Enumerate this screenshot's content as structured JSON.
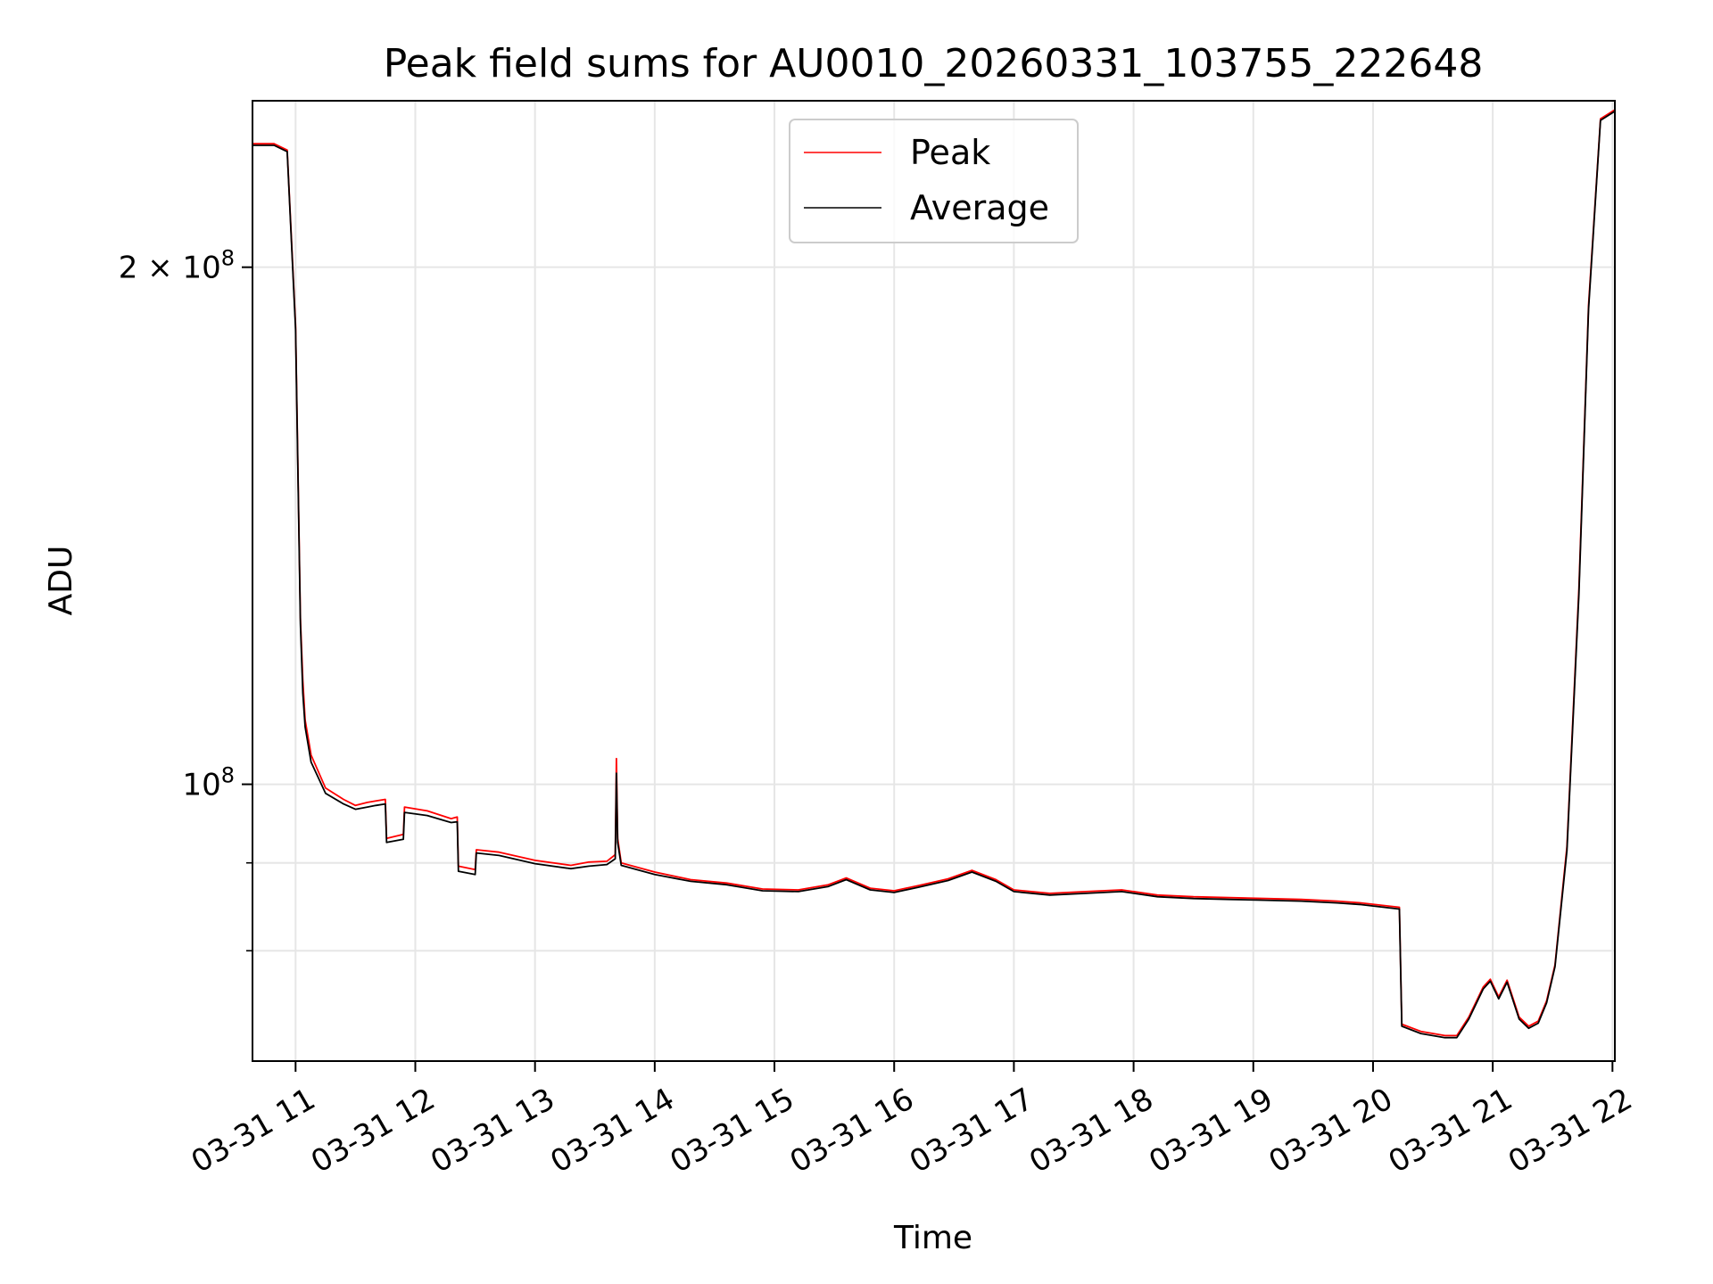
{
  "chart_data": {
    "type": "line",
    "title": "Peak field sums for AU0010_20260331_103755_222648",
    "xlabel": "Time",
    "ylabel": "ADU",
    "yscale": "log",
    "xlim": [
      10.64,
      22.02
    ],
    "ylim": [
      69000000,
      250000000
    ],
    "grid": true,
    "legend_position": "upper-center",
    "x_ticks": [
      {
        "value": 11,
        "label": "03-31 11"
      },
      {
        "value": 12,
        "label": "03-31 12"
      },
      {
        "value": 13,
        "label": "03-31 13"
      },
      {
        "value": 14,
        "label": "03-31 14"
      },
      {
        "value": 15,
        "label": "03-31 15"
      },
      {
        "value": 16,
        "label": "03-31 16"
      },
      {
        "value": 17,
        "label": "03-31 17"
      },
      {
        "value": 18,
        "label": "03-31 18"
      },
      {
        "value": 19,
        "label": "03-31 19"
      },
      {
        "value": 20,
        "label": "03-31 20"
      },
      {
        "value": 21,
        "label": "03-31 21"
      },
      {
        "value": 22,
        "label": "03-31 22"
      }
    ],
    "y_major_ticks": [
      {
        "value": 100000000,
        "label_base": "10",
        "label_exp": "8"
      },
      {
        "value": 200000000,
        "label_base": "2 × 10",
        "label_exp": "8"
      }
    ],
    "y_minor_ticks": [
      80000000,
      90000000
    ],
    "series": [
      {
        "name": "Peak",
        "color": "#ff0000",
        "x": [
          10.64,
          10.82,
          10.93,
          11.0,
          11.04,
          11.06,
          11.08,
          11.13,
          11.25,
          11.4,
          11.5,
          11.6,
          11.67,
          11.75,
          11.76,
          11.9,
          11.91,
          12.1,
          12.3,
          12.35,
          12.36,
          12.5,
          12.51,
          12.7,
          13.0,
          13.3,
          13.45,
          13.6,
          13.67,
          13.68,
          13.69,
          13.72,
          14.0,
          14.3,
          14.6,
          14.9,
          15.2,
          15.45,
          15.6,
          15.8,
          16.0,
          16.2,
          16.45,
          16.65,
          16.85,
          17.0,
          17.3,
          17.6,
          17.9,
          18.2,
          18.5,
          18.8,
          19.1,
          19.4,
          19.7,
          19.9,
          20.22,
          20.24,
          20.4,
          20.6,
          20.7,
          20.8,
          20.92,
          20.98,
          21.05,
          21.12,
          21.22,
          21.3,
          21.38,
          21.45,
          21.52,
          21.62,
          21.72,
          21.8,
          21.9,
          22.02
        ],
        "y": [
          236000000,
          236000000,
          234000000,
          185000000,
          125000000,
          115000000,
          109000000,
          104000000,
          99500000,
          98000000,
          97200000,
          97600000,
          97800000,
          98000000,
          93000000,
          93500000,
          97000000,
          96500000,
          95500000,
          95700000,
          89600000,
          89200000,
          91600000,
          91300000,
          90300000,
          89700000,
          90100000,
          90200000,
          91000000,
          103500000,
          93000000,
          90000000,
          88900000,
          88000000,
          87600000,
          86900000,
          86800000,
          87400000,
          88200000,
          87000000,
          86700000,
          87300000,
          88100000,
          89100000,
          88000000,
          86800000,
          86400000,
          86600000,
          86800000,
          86200000,
          86000000,
          85900000,
          85800000,
          85700000,
          85500000,
          85300000,
          84800000,
          72500000,
          71800000,
          71400000,
          71400000,
          73200000,
          76200000,
          77000000,
          75200000,
          76900000,
          73200000,
          72300000,
          72800000,
          74800000,
          78500000,
          92000000,
          130000000,
          190000000,
          244000000,
          247000000
        ]
      },
      {
        "name": "Average",
        "color": "#000000",
        "x": [
          10.64,
          10.82,
          10.93,
          11.0,
          11.04,
          11.06,
          11.08,
          11.13,
          11.25,
          11.4,
          11.5,
          11.6,
          11.67,
          11.75,
          11.76,
          11.9,
          11.91,
          12.1,
          12.3,
          12.35,
          12.36,
          12.5,
          12.51,
          12.7,
          13.0,
          13.3,
          13.45,
          13.6,
          13.67,
          13.68,
          13.69,
          13.72,
          14.0,
          14.3,
          14.6,
          14.9,
          15.2,
          15.45,
          15.6,
          15.8,
          16.0,
          16.2,
          16.45,
          16.65,
          16.85,
          17.0,
          17.3,
          17.6,
          17.9,
          18.2,
          18.5,
          18.8,
          19.1,
          19.4,
          19.7,
          19.9,
          20.22,
          20.24,
          20.4,
          20.6,
          20.7,
          20.8,
          20.92,
          20.98,
          21.05,
          21.12,
          21.22,
          21.3,
          21.38,
          21.45,
          21.52,
          21.62,
          21.72,
          21.8,
          21.9,
          22.02
        ],
        "y": [
          235500000,
          235500000,
          233500000,
          184000000,
          124000000,
          113000000,
          108000000,
          103000000,
          98800000,
          97400000,
          96700000,
          97000000,
          97200000,
          97400000,
          92500000,
          92900000,
          96300000,
          95900000,
          95000000,
          95100000,
          89000000,
          88600000,
          91200000,
          90900000,
          89900000,
          89300000,
          89600000,
          89800000,
          90500000,
          101500000,
          92500000,
          89700000,
          88600000,
          87800000,
          87400000,
          86700000,
          86600000,
          87200000,
          88000000,
          86800000,
          86500000,
          87100000,
          87900000,
          88900000,
          87800000,
          86600000,
          86200000,
          86400000,
          86600000,
          86000000,
          85800000,
          85700000,
          85600000,
          85500000,
          85300000,
          85100000,
          84600000,
          72300000,
          71600000,
          71200000,
          71200000,
          73000000,
          76000000,
          76800000,
          75000000,
          76700000,
          73000000,
          72100000,
          72600000,
          74600000,
          78300000,
          91500000,
          129000000,
          189000000,
          243500000,
          246500000
        ]
      }
    ]
  }
}
